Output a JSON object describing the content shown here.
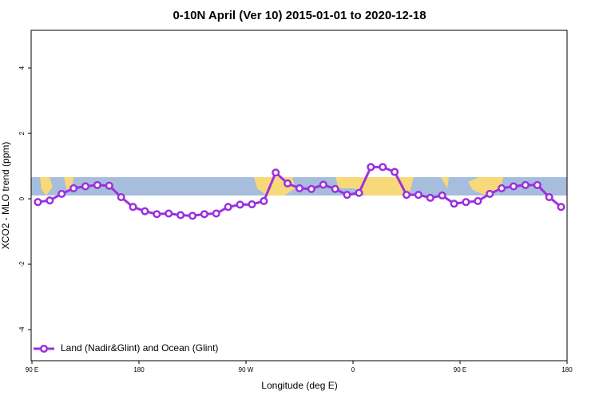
{
  "chart_data": {
    "type": "line",
    "title": "0-10N April (Ver 10)   2015-01-01 to 2020-12-18",
    "x_label": "Longitude (deg E)",
    "y_label": "XCO2 - MLO trend (ppm)",
    "xlim": [
      90,
      540
    ],
    "xticks": [
      {
        "value": 90,
        "label": "90 E"
      },
      180,
      {
        "value": 270,
        "label": "90 W"
      },
      {
        "value": 360,
        "label": "0"
      },
      {
        "value": 450,
        "label": "90 E"
      },
      {
        "value": 540,
        "label": "180"
      }
    ],
    "ylim": [
      -4.95,
      5.15
    ],
    "yticks": [
      -4,
      -2,
      0,
      2,
      4
    ],
    "legend": "bottom-left",
    "series": [
      {
        "name": "Land (Nadir&Glint) and Ocean (Glint)",
        "color": "#9b30e0",
        "x": [
          95,
          105,
          115,
          125,
          135,
          145,
          155,
          165,
          175,
          185,
          195,
          205,
          215,
          225,
          235,
          245,
          255,
          265,
          275,
          285,
          295,
          305,
          315,
          325,
          335,
          345,
          355,
          365,
          375,
          385,
          395,
          405,
          415,
          425,
          435,
          445,
          455,
          465,
          475,
          485,
          495,
          505,
          515,
          525,
          535
        ],
        "values": [
          -0.1,
          -0.05,
          0.15,
          0.32,
          0.38,
          0.42,
          0.4,
          0.05,
          -0.25,
          -0.38,
          -0.47,
          -0.45,
          -0.5,
          -0.52,
          -0.47,
          -0.45,
          -0.25,
          -0.18,
          -0.17,
          -0.07,
          0.8,
          0.47,
          0.32,
          0.3,
          0.43,
          0.3,
          0.12,
          0.18,
          0.97,
          0.97,
          0.82,
          0.12,
          0.12,
          0.03,
          0.1,
          -0.15,
          -0.1,
          -0.07,
          0.15,
          0.32,
          0.38,
          0.42,
          0.42,
          0.05,
          -0.25
        ]
      }
    ]
  }
}
